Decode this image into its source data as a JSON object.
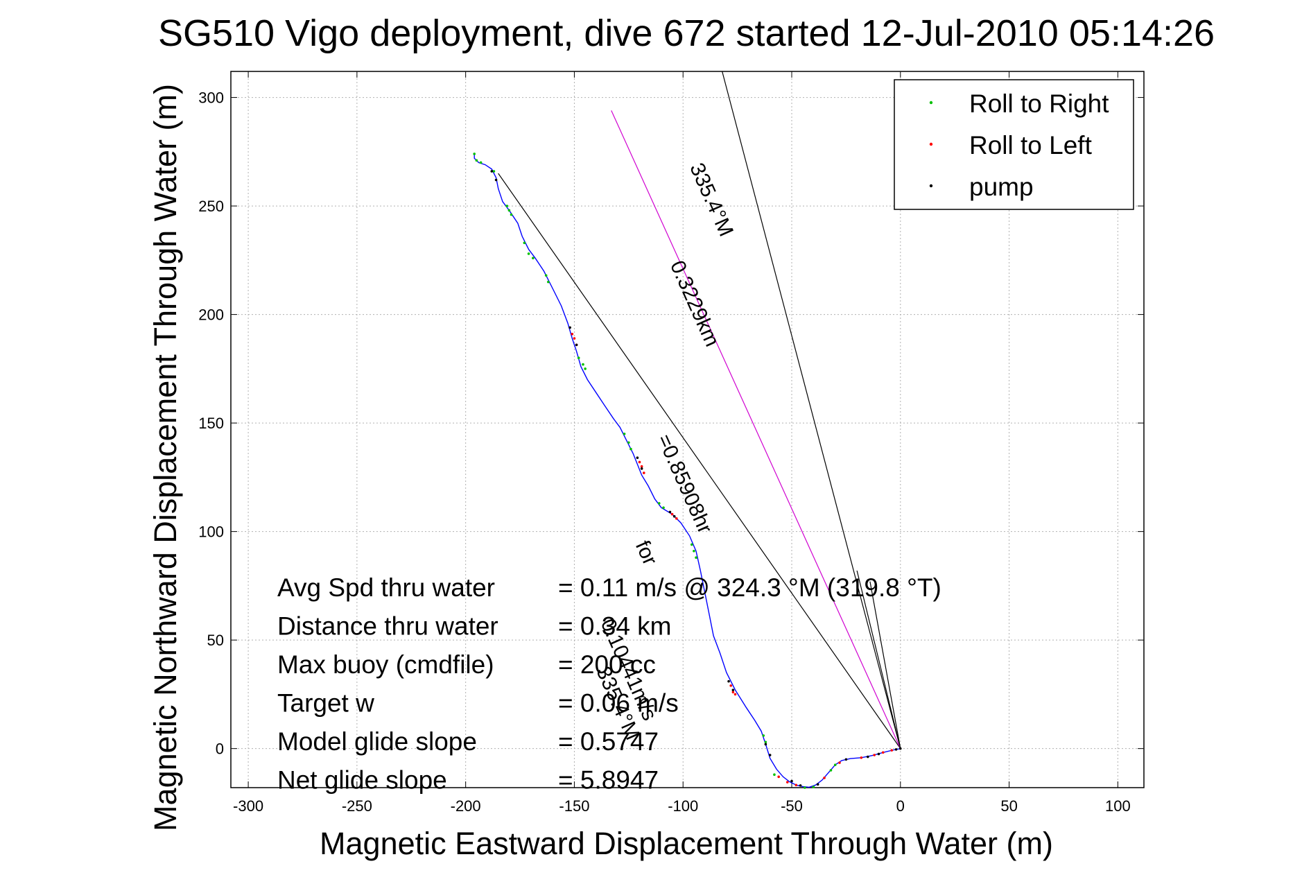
{
  "chart_data": {
    "type": "scatter",
    "title": "SG510 Vigo deployment, dive 672 started 12-Jul-2010 05:14:26",
    "xlabel": "Magnetic Eastward Displacement Through Water (m)",
    "ylabel": "Magnetic Northward Displacement Through Water (m)",
    "xlim": [
      -308,
      112
    ],
    "ylim": [
      -18,
      312
    ],
    "xticks": [
      -300,
      -250,
      -200,
      -150,
      -100,
      -50,
      0,
      50,
      100
    ],
    "yticks": [
      0,
      50,
      100,
      150,
      200,
      250,
      300
    ],
    "xtick_labels": [
      "-300",
      "-250",
      "-200",
      "-150",
      "-100",
      "-50",
      "0",
      "50",
      "100"
    ],
    "ytick_labels": [
      "0",
      "50",
      "100",
      "150",
      "200",
      "250",
      "300"
    ],
    "grid": true,
    "legend": {
      "position": "top-right",
      "entries": [
        {
          "label": "Roll to Right",
          "color": "#00c000"
        },
        {
          "label": "Roll to Left",
          "color": "#ff0000"
        },
        {
          "label": "pump",
          "color": "#000000"
        }
      ]
    },
    "track": {
      "color": "#0000ff",
      "points": [
        [
          0,
          0
        ],
        [
          -3,
          -0.6
        ],
        [
          -8,
          -1.8
        ],
        [
          -13,
          -3.2
        ],
        [
          -18,
          -4.2
        ],
        [
          -23,
          -4.6
        ],
        [
          -27,
          -5.5
        ],
        [
          -30,
          -7.5
        ],
        [
          -33,
          -11
        ],
        [
          -36,
          -14.5
        ],
        [
          -39,
          -16.8
        ],
        [
          -42,
          -17.8
        ],
        [
          -45,
          -17.5
        ],
        [
          -48,
          -16.8
        ],
        [
          -51,
          -15.3
        ],
        [
          -54,
          -13
        ],
        [
          -57,
          -9.5
        ],
        [
          -60,
          -4.5
        ],
        [
          -62,
          2
        ],
        [
          -64,
          8
        ],
        [
          -67,
          13
        ],
        [
          -71,
          19
        ],
        [
          -76,
          27
        ],
        [
          -80,
          35
        ],
        [
          -83,
          44
        ],
        [
          -86,
          52
        ],
        [
          -88,
          62
        ],
        [
          -90,
          72
        ],
        [
          -92,
          82
        ],
        [
          -94,
          91
        ],
        [
          -97,
          98
        ],
        [
          -101,
          104
        ],
        [
          -105,
          108
        ],
        [
          -110,
          111
        ],
        [
          -113,
          115
        ],
        [
          -116,
          121
        ],
        [
          -119,
          126
        ],
        [
          -121,
          131
        ],
        [
          -123,
          136
        ],
        [
          -126,
          142
        ],
        [
          -129,
          148
        ],
        [
          -132,
          152
        ],
        [
          -136,
          158
        ],
        [
          -140,
          164
        ],
        [
          -144,
          170
        ],
        [
          -147,
          176
        ],
        [
          -149,
          183
        ],
        [
          -151,
          189
        ],
        [
          -153,
          196
        ],
        [
          -156,
          204
        ],
        [
          -160,
          212
        ],
        [
          -164,
          220
        ],
        [
          -168,
          226
        ],
        [
          -171,
          230
        ],
        [
          -174,
          236
        ],
        [
          -176,
          242
        ],
        [
          -180,
          248
        ],
        [
          -183,
          252
        ],
        [
          -185,
          258
        ],
        [
          -186,
          263
        ],
        [
          -188,
          267
        ],
        [
          -191,
          269
        ],
        [
          -194,
          270
        ],
        [
          -196,
          272
        ],
        [
          -196,
          274
        ]
      ]
    },
    "markers": {
      "roll_right": [
        [
          -196,
          274
        ],
        [
          -195,
          271
        ],
        [
          -193,
          270
        ],
        [
          -187,
          266
        ],
        [
          -181,
          250
        ],
        [
          -180,
          248
        ],
        [
          -179,
          246
        ],
        [
          -173,
          233
        ],
        [
          -171,
          228
        ],
        [
          -169,
          226
        ],
        [
          -163,
          218
        ],
        [
          -162,
          215
        ],
        [
          -148,
          180
        ],
        [
          -146,
          177
        ],
        [
          -145,
          175
        ],
        [
          -127,
          145
        ],
        [
          -125,
          141
        ],
        [
          -124,
          138
        ],
        [
          -111,
          113
        ],
        [
          -109,
          111
        ],
        [
          -96,
          94
        ],
        [
          -95,
          91
        ],
        [
          -94,
          88
        ],
        [
          -63,
          6
        ],
        [
          -62,
          3
        ],
        [
          -58,
          -12
        ],
        [
          -44,
          -18
        ],
        [
          -40,
          -17.7
        ],
        [
          -32,
          -10
        ],
        [
          -30,
          -7.5
        ]
      ],
      "roll_left": [
        [
          -150,
          189
        ],
        [
          -151,
          191
        ],
        [
          -149,
          186
        ],
        [
          -120,
          132
        ],
        [
          -119,
          130
        ],
        [
          -118,
          127
        ],
        [
          -105,
          108
        ],
        [
          -103,
          106
        ],
        [
          -78,
          29
        ],
        [
          -77,
          26
        ],
        [
          -76,
          25
        ],
        [
          -56,
          -13
        ],
        [
          -52,
          -15.5
        ],
        [
          -48,
          -16.8
        ],
        [
          -35,
          -13.5
        ],
        [
          -28,
          -6.5
        ],
        [
          -18,
          -4.2
        ],
        [
          -12,
          -3
        ],
        [
          -8,
          -1.8
        ],
        [
          -4,
          -0.8
        ]
      ],
      "pump": [
        [
          -188,
          266
        ],
        [
          -186,
          262
        ],
        [
          -152,
          194
        ],
        [
          -149,
          186
        ],
        [
          -121,
          134
        ],
        [
          -119,
          129
        ],
        [
          -106,
          109
        ],
        [
          -104,
          107
        ],
        [
          -79,
          31
        ],
        [
          -77,
          27
        ],
        [
          -62,
          2
        ],
        [
          -60,
          -3
        ],
        [
          -50,
          -15
        ],
        [
          -46,
          -17
        ],
        [
          -38,
          -16.5
        ],
        [
          -25,
          -5
        ],
        [
          -15,
          -3.8
        ],
        [
          -10,
          -2.5
        ],
        [
          -2,
          -0.4
        ],
        [
          0,
          0
        ]
      ]
    },
    "lines": [
      {
        "from": [
          0,
          0
        ],
        "to": [
          -185,
          265
        ],
        "color": "#000000"
      },
      {
        "from": [
          0,
          0
        ],
        "to": [
          -82,
          312
        ],
        "color": "#000000"
      },
      {
        "from": [
          0,
          0
        ],
        "to": [
          -133,
          294
        ],
        "color": "#d000d0"
      },
      {
        "from": [
          0,
          0
        ],
        "to": [
          -20,
          82
        ],
        "color": "#000000"
      },
      {
        "from": [
          0,
          0
        ],
        "to": [
          -14,
          77
        ],
        "color": "#000000"
      }
    ],
    "annotations": [
      {
        "text": "335.4°M",
        "x": -97,
        "y": 268,
        "angle": -66
      },
      {
        "text": "0.3229km",
        "x": -106,
        "y": 223,
        "angle": -66
      },
      {
        "text": "=0.85908hr",
        "x": -112,
        "y": 143,
        "angle": -66
      },
      {
        "text": "for",
        "x": -122,
        "y": 94,
        "angle": -66
      },
      {
        "text": "0.10441m/s",
        "x": -138,
        "y": 58,
        "angle": -66
      },
      {
        "text": "335.4°M",
        "x": -140,
        "y": 36,
        "angle": -66
      }
    ],
    "stats": [
      {
        "label": "Avg Spd thru water",
        "value": "=  0.11 m/s @ 324.3 °M (319.8 °T)"
      },
      {
        "label": "Distance thru water",
        "value": "=  0.34 km"
      },
      {
        "label": "Max buoy (cmdfile)",
        "value": "= 200 cc"
      },
      {
        "label": "Target w",
        "value": "= 0.06 m/s"
      },
      {
        "label": "Model glide slope",
        "value": "= 0.5747"
      },
      {
        "label": "Net glide slope",
        "value": "= 5.8947"
      }
    ]
  }
}
